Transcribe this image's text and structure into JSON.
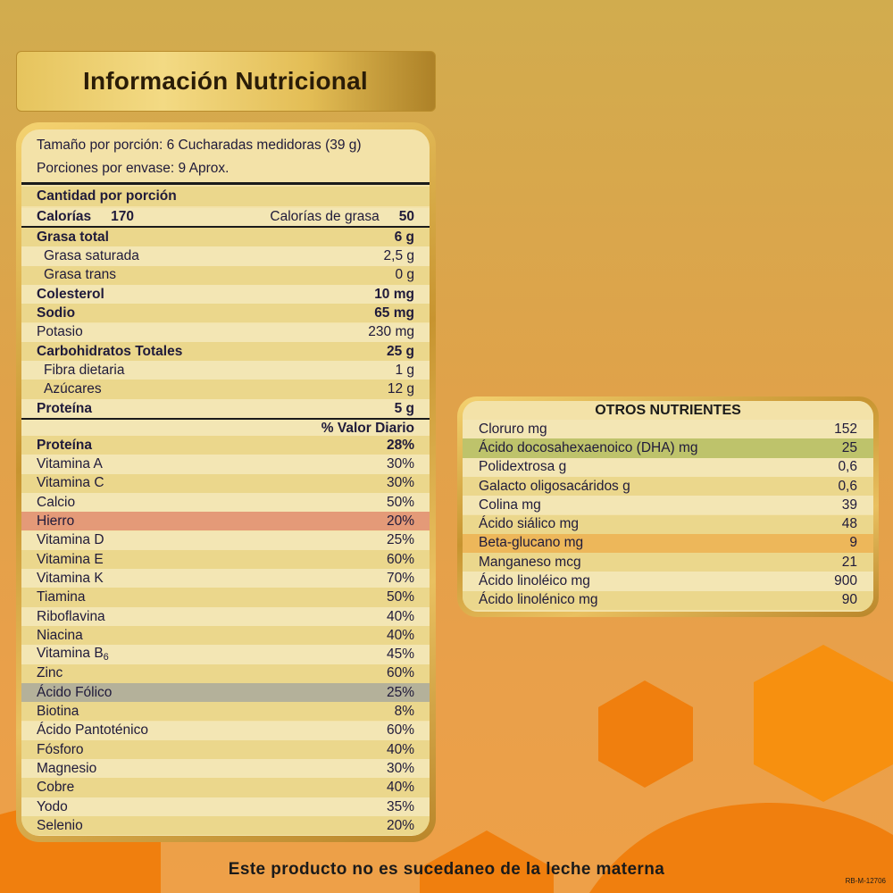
{
  "title": "Información Nutricional",
  "serving": {
    "size": "Tamaño por porción: 6 Cucharadas medidoras (39 g)",
    "per_container": "Porciones por envase: 9 Aprox."
  },
  "amount_header": "Cantidad por porción",
  "calories": {
    "label": "Calorías",
    "value": "170",
    "fat_label": "Calorías de grasa",
    "fat_value": "50"
  },
  "nutrients": [
    {
      "label": "Grasa total",
      "value": "6 g",
      "bold": true
    },
    {
      "label": "Grasa saturada",
      "value": "2,5 g",
      "indent": true
    },
    {
      "label": "Grasa trans",
      "value": "0 g",
      "indent": true
    },
    {
      "label": "Colesterol",
      "value": "10 mg",
      "bold": true
    },
    {
      "label": "Sodio",
      "value": "65 mg",
      "bold": true
    },
    {
      "label": "Potasio",
      "value": "230 mg"
    },
    {
      "label": "Carbohidratos Totales",
      "value": "25 g",
      "bold": true
    },
    {
      "label": "Fibra dietaria",
      "value": "1 g",
      "indent": true
    },
    {
      "label": "Azúcares",
      "value": "12 g",
      "indent": true
    },
    {
      "label": "Proteína",
      "value": "5 g",
      "bold": true
    }
  ],
  "dv_header": "% Valor Diario",
  "vitamins": [
    {
      "label": "Proteína",
      "value": "28%",
      "bold": true
    },
    {
      "label": "Vitamina A",
      "value": "30%"
    },
    {
      "label": "Vitamina C",
      "value": "30%"
    },
    {
      "label": "Calcio",
      "value": "50%"
    },
    {
      "label": "Hierro",
      "value": "20%",
      "highlight": "red"
    },
    {
      "label": "Vitamina D",
      "value": "25%"
    },
    {
      "label": "Vitamina E",
      "value": "60%"
    },
    {
      "label": "Vitamina K",
      "value": "70%"
    },
    {
      "label": "Tiamina",
      "value": "50%"
    },
    {
      "label": "Riboflavina",
      "value": "40%"
    },
    {
      "label": "Niacina",
      "value": "40%"
    },
    {
      "label": "Vitamina B",
      "sub": "6",
      "value": "45%"
    },
    {
      "label": "Zinc",
      "value": "60%"
    },
    {
      "label": "Ácido Fólico",
      "value": "25%",
      "highlight": "gray"
    },
    {
      "label": "Biotina",
      "value": "8%"
    },
    {
      "label": "Ácido Pantoténico",
      "value": "60%"
    },
    {
      "label": "Fósforo",
      "value": "40%"
    },
    {
      "label": "Magnesio",
      "value": "30%"
    },
    {
      "label": "Cobre",
      "value": "40%"
    },
    {
      "label": "Yodo",
      "value": "35%"
    },
    {
      "label": "Selenio",
      "value": "20%"
    }
  ],
  "otros": {
    "title": "OTROS NUTRIENTES",
    "rows": [
      {
        "label": "Cloruro mg",
        "value": "152"
      },
      {
        "label": "Ácido docosahexaenoico (DHA) mg",
        "value": "25",
        "highlight": "green"
      },
      {
        "label": "Polidextrosa g",
        "value": "0,6"
      },
      {
        "label": "Galacto oligosacáridos g",
        "value": "0,6"
      },
      {
        "label": "Colina mg",
        "value": "39"
      },
      {
        "label": "Ácido siálico mg",
        "value": "48"
      },
      {
        "label": "Beta-glucano mg",
        "value": "9",
        "highlight": "orange"
      },
      {
        "label": "Manganeso mcg",
        "value": "21"
      },
      {
        "label": "Ácido linoléico mg",
        "value": "900"
      },
      {
        "label": "Ácido linolénico mg",
        "value": "90"
      }
    ]
  },
  "footer": "Este producto no es sucedaneo de la leche materna",
  "code": "RB-M-12706",
  "colors": {
    "accent_orange": "#f07f0e",
    "gold": "#d1ac4e",
    "hierro_highlight": "#e49a78",
    "folico_highlight": "#b4b19a",
    "dha_highlight": "#bec36b",
    "beta_highlight": "#edb75a"
  }
}
